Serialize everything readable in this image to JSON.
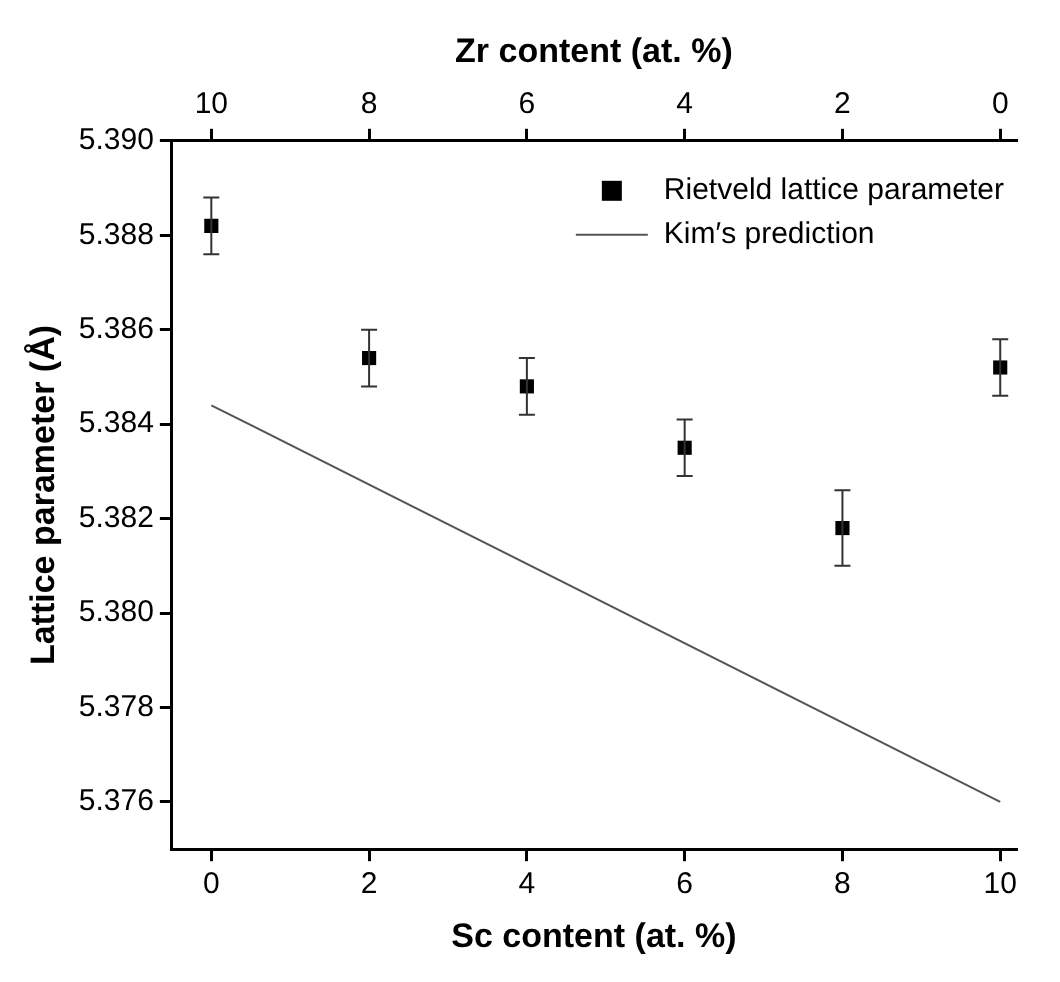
{
  "chart_data": {
    "type": "scatter",
    "xlabel": "Sc content (at. %)",
    "x2label": "Zr content (at. %)",
    "ylabel": "Lattice parameter (Å)",
    "xlim": [
      -0.5,
      10.2
    ],
    "xticks": [
      0,
      2,
      4,
      6,
      8,
      10
    ],
    "x2lim": [
      10.5,
      -0.2
    ],
    "x2ticks": [
      10,
      8,
      6,
      4,
      2,
      0
    ],
    "ylim": [
      5.375,
      5.39
    ],
    "yticks": [
      {
        "value": 5.376,
        "label": "5.376"
      },
      {
        "value": 5.378,
        "label": "5.378"
      },
      {
        "value": 5.38,
        "label": "5.380"
      },
      {
        "value": 5.382,
        "label": "5.382"
      },
      {
        "value": 5.384,
        "label": "5.384"
      },
      {
        "value": 5.386,
        "label": "5.386"
      },
      {
        "value": 5.388,
        "label": "5.388"
      },
      {
        "value": 5.39,
        "label": "5.390"
      }
    ],
    "grid": false,
    "legend": "top right",
    "series": [
      {
        "name": "Rietveld lattice parameter",
        "color": "#000000",
        "marker": "square",
        "x": [
          0,
          2,
          4,
          6,
          8,
          10
        ],
        "values": [
          5.3882,
          5.3854,
          5.3848,
          5.3835,
          5.3818,
          5.3852
        ],
        "errors": [
          0.0006,
          0.0006,
          0.0006,
          0.0006,
          0.0008,
          0.0006
        ]
      },
      {
        "name": "Kim′s prediction",
        "type": "line",
        "color": "#555555",
        "marker": "none",
        "line_style": "solid",
        "x": [
          0,
          10
        ],
        "values": [
          5.3844,
          5.376
        ]
      }
    ]
  }
}
